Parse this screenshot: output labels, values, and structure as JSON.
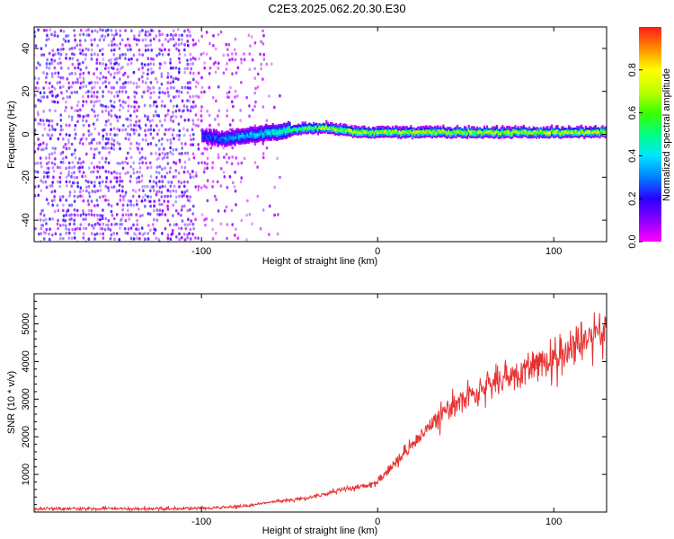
{
  "title": "C2E3.2025.062.20.30.E30",
  "colors": {
    "line": "#e83232",
    "frame": "#000000",
    "colorbar": [
      "#ff00ff",
      "#8a00ff",
      "#2a00ff",
      "#0080ff",
      "#00e5ff",
      "#00ff80",
      "#3cff00",
      "#c0ff00",
      "#ffff00",
      "#ff8c00",
      "#ff1a1a"
    ]
  },
  "chart_data": [
    {
      "type": "heatmap",
      "xlabel": "Height of straight line (km)",
      "ylabel": "Frequency (Hz)",
      "xlim": [
        -195,
        130
      ],
      "ylim": [
        -50,
        50
      ],
      "xticks": [
        -100,
        0,
        100
      ],
      "yticks": [
        -40,
        -20,
        0,
        20,
        40
      ],
      "grid": false,
      "colorbar": {
        "label": "Normalized spectral amplitude",
        "range": [
          0.0,
          1.0
        ],
        "ticks": [
          "0.0",
          "0.2",
          "0.4",
          "0.6",
          "0.8"
        ]
      },
      "ridge": {
        "x": [
          -100,
          -90,
          -80,
          -70,
          -60,
          -50,
          -40,
          -30,
          -20,
          -10,
          0,
          20,
          40,
          60,
          80,
          100,
          120,
          130
        ],
        "freq": [
          -1,
          -2,
          -1,
          0,
          1,
          2,
          3,
          3,
          2,
          1,
          1,
          1,
          1,
          1,
          1,
          1,
          1,
          1
        ],
        "amplitude": [
          0.25,
          0.3,
          0.35,
          0.4,
          0.45,
          0.55,
          0.65,
          0.7,
          0.75,
          0.75,
          0.75,
          0.75,
          0.75,
          0.75,
          0.75,
          0.75,
          0.75,
          0.75
        ]
      },
      "noise_region": {
        "x_range": [
          -195,
          -55
        ],
        "amplitude": 0.15
      }
    },
    {
      "type": "line",
      "xlabel": "Height of straight line (km)",
      "ylabel": "SNR (10 * v/v)",
      "xlim": [
        -195,
        130
      ],
      "ylim": [
        0,
        5800
      ],
      "xticks": [
        -100,
        0,
        100
      ],
      "yticks": [
        1000,
        2000,
        3000,
        4000,
        5000
      ],
      "grid": false,
      "series": [
        {
          "x": [
            -195,
            -170,
            -140,
            -120,
            -100,
            -80,
            -70,
            -60,
            -50,
            -40,
            -30,
            -20,
            -10,
            0,
            10,
            20,
            30,
            40,
            50,
            60,
            70,
            80,
            90,
            100,
            110,
            120,
            130
          ],
          "values": [
            80,
            90,
            90,
            90,
            100,
            140,
            200,
            270,
            320,
            380,
            480,
            600,
            650,
            800,
            1300,
            1800,
            2300,
            2700,
            3050,
            3300,
            3550,
            3750,
            3900,
            4050,
            4300,
            4550,
            4850
          ]
        }
      ]
    }
  ]
}
